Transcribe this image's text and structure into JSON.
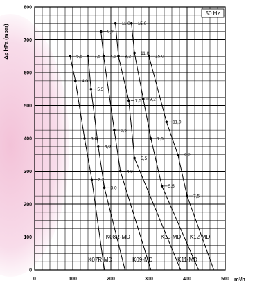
{
  "chart_data": {
    "type": "line",
    "ylabel": "Δp hPa (mbar)",
    "xlabel": "m³/h",
    "xlim": [
      0,
      500
    ],
    "ylim": [
      0,
      800
    ],
    "x_ticks": [
      "0",
      "100",
      "200",
      "300",
      "400",
      "500"
    ],
    "y_ticks": [
      "0",
      "100",
      "200",
      "300",
      "400",
      "500",
      "600",
      "700",
      "800"
    ],
    "legend": "50 Hz",
    "grid": true,
    "series": [
      {
        "name": "K07R-MD",
        "points": [
          {
            "x": 93,
            "y": 650,
            "label": "5,5"
          },
          {
            "x": 107,
            "y": 575,
            "label": "4,0"
          },
          {
            "x": 131,
            "y": 400,
            "label": "3,0"
          },
          {
            "x": 150,
            "y": 275,
            "label": "2,2"
          },
          {
            "x": 183,
            "y": 0,
            "label": ""
          }
        ]
      },
      {
        "name": "K08R-MD",
        "points": [
          {
            "x": 140,
            "y": 650,
            "label": "7,5"
          },
          {
            "x": 148,
            "y": 550,
            "label": "5,5"
          },
          {
            "x": 167,
            "y": 375,
            "label": "4,0"
          },
          {
            "x": 183,
            "y": 250,
            "label": "3,0"
          },
          {
            "x": 237,
            "y": 0,
            "label": ""
          }
        ]
      },
      {
        "name": "K09-MD",
        "points": [
          {
            "x": 174,
            "y": 725,
            "label": "9,2"
          },
          {
            "x": 181,
            "y": 650,
            "label": "7,5"
          },
          {
            "x": 209,
            "y": 425,
            "label": "5,5"
          },
          {
            "x": 225,
            "y": 300,
            "label": "4,0"
          },
          {
            "x": 305,
            "y": 0,
            "label": ""
          }
        ]
      },
      {
        "name": "K10-MD",
        "points": [
          {
            "x": 212,
            "y": 750,
            "label": "11,0"
          },
          {
            "x": 220,
            "y": 650,
            "label": "9,2"
          },
          {
            "x": 247,
            "y": 515,
            "label": "7,5"
          },
          {
            "x": 262,
            "y": 340,
            "label": "5,5"
          },
          {
            "x": 383,
            "y": 0,
            "label": ""
          }
        ]
      },
      {
        "name": "K11-MD",
        "points": [
          {
            "x": 254,
            "y": 750,
            "label": "15,0"
          },
          {
            "x": 262,
            "y": 660,
            "label": "11,0"
          },
          {
            "x": 285,
            "y": 520,
            "label": "9,2"
          },
          {
            "x": 305,
            "y": 400,
            "label": "7,5"
          },
          {
            "x": 334,
            "y": 255,
            "label": "5,5"
          },
          {
            "x": 430,
            "y": 0,
            "label": ""
          }
        ]
      },
      {
        "name": "K12-MD",
        "points": [
          {
            "x": 300,
            "y": 650,
            "label": "15,0"
          },
          {
            "x": 346,
            "y": 450,
            "label": "11,0"
          },
          {
            "x": 376,
            "y": 350,
            "label": "9,2"
          },
          {
            "x": 400,
            "y": 225,
            "label": "7,5"
          },
          {
            "x": 470,
            "y": 0,
            "label": ""
          }
        ]
      }
    ]
  }
}
